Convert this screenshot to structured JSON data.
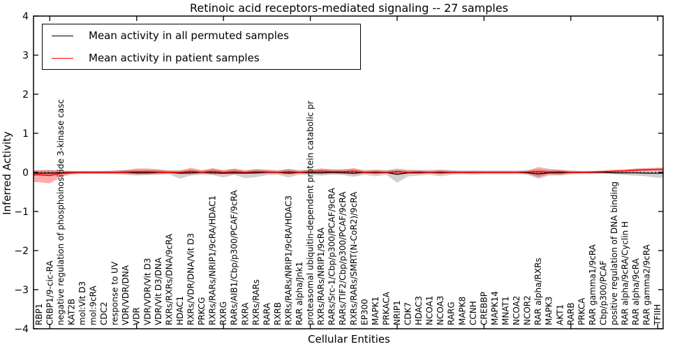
{
  "title": "Retinoic acid receptors-mediated signaling -- 27 samples",
  "axes": {
    "xlabel": "Cellular Entities",
    "ylabel": "Inferred Activity"
  },
  "legend": {
    "items": [
      {
        "label": "Mean activity in all permuted samples",
        "color": "#000000"
      },
      {
        "label": "Mean activity in patient samples",
        "color": "#ff0000"
      }
    ]
  },
  "colors": {
    "permuted_line": "#000000",
    "patient_line": "#ff0000",
    "permuted_band": "#c8c8c8",
    "patient_band": "#ff0000",
    "frame": "#000000"
  },
  "chart_data": {
    "type": "line",
    "title": "Retinoic acid receptors-mediated signaling -- 27 samples",
    "xlabel": "Cellular Entities",
    "ylabel": "Inferred Activity",
    "ylim": [
      -4,
      4
    ],
    "grid": false,
    "legend_position": "upper left",
    "zero_line_style": "dotted",
    "yticks": {
      "values": [
        4,
        3,
        2,
        1,
        0,
        -1,
        -2,
        -3,
        -4
      ],
      "labels": [
        "4",
        "3",
        "2",
        "1",
        "0",
        "−1",
        "−2",
        "−3",
        "−4"
      ]
    },
    "categories": [
      "RBP1",
      "CRBP1/9-cic-RA",
      "negative regulation of phosphoinositide 3-kinase casc",
      "KAT2B",
      "mol:Vit D3",
      "mol:9cRA",
      "CDC2",
      "response to UV",
      "VDR/VDR/DNA",
      "VDR",
      "VDR/VDR/Vit D3",
      "VDR/Vit D3/DNA",
      "RXRs/RXRs/DNA/9cRA",
      "HDAC1",
      "RXRs/VDR/DNA/Vit D3",
      "PRKCG",
      "RXRs/RARs/NRIP1/9cRA/HDAC1",
      "RXRG",
      "RARs/AIB1/Cbp/p300/PCAF/9cRA",
      "RXRA",
      "RXRs/RARs",
      "RARA",
      "RXRB",
      "RXRs/RARs/NRIP1/9cRA/HDAC3",
      "RAR alpha/Jnk1",
      "proteasomal ubiquitin-dependent protein catabolic pr",
      "RXRs/RARs/NRIP1/9cRA",
      "RARs/Src-1/Cbp/p300/PCAF/9cRA",
      "RARs/TIF2/Cbp/p300/PCAF/9cRA",
      "RXRs/RARs/SMRT(N-CoR2)/9cRA",
      "EP300",
      "MAPK1",
      "PRKACA",
      "NRIP1",
      "CDK7",
      "HDAC3",
      "NCOA1",
      "NCOA3",
      "RARG",
      "MAPK8",
      "CCNH",
      "CREBBP",
      "MAPK14",
      "MNAT1",
      "NCOA2",
      "NCOR2",
      "RAR alpha/RXRs",
      "MAPK3",
      "AKT1",
      "RARB",
      "PRKCA",
      "RAR gamma1/9cRA",
      "Cbp/p300/PCAF",
      "positive regulation of DNA binding",
      "RAR alpha/9cRA/Cyclin H",
      "RAR alpha/9cRA",
      "RAR gamma2/9cRA",
      "TFIIH"
    ],
    "series": [
      {
        "name": "Mean activity in all permuted samples",
        "role": "mean_line",
        "color": "#000000",
        "values": [
          -0.02,
          -0.02,
          -0.01,
          0,
          0,
          0,
          0,
          0,
          0,
          -0.01,
          -0.01,
          0,
          0,
          -0.02,
          -0.01,
          0,
          -0.01,
          -0.02,
          -0.01,
          -0.02,
          -0.01,
          0,
          0,
          -0.02,
          0,
          -0.01,
          -0.01,
          0,
          -0.01,
          -0.02,
          0,
          -0.01,
          0,
          -0.05,
          -0.01,
          -0.01,
          0,
          -0.01,
          0,
          0,
          0,
          0,
          0,
          0,
          0,
          -0.01,
          -0.04,
          -0.01,
          -0.01,
          0,
          0,
          0,
          0,
          -0.01,
          -0.01,
          -0.01,
          -0.02,
          -0.02
        ]
      },
      {
        "name": "Mean activity in patient samples",
        "role": "mean_line",
        "color": "#ff0000",
        "values": [
          -0.06,
          -0.08,
          -0.03,
          -0.01,
          0,
          0,
          0,
          0,
          0.01,
          0.02,
          0.02,
          0.01,
          0,
          0,
          0.03,
          0,
          0.03,
          0,
          0.02,
          0,
          0.02,
          0.01,
          0,
          0.02,
          0,
          0.02,
          0.03,
          0.02,
          0.02,
          0.03,
          0,
          0.01,
          0,
          0.02,
          0,
          0.01,
          0,
          0.01,
          0,
          0,
          0,
          0,
          0,
          0,
          0,
          0.01,
          0.02,
          0.01,
          0.02,
          0,
          0,
          0.01,
          0.02,
          0.03,
          0.04,
          0.06,
          0.07,
          0.08
        ]
      },
      {
        "name": "Permuted samples activity range",
        "role": "band",
        "color": "#c8c8c8",
        "opacity": 0.85,
        "hi": [
          0.06,
          0.06,
          0.05,
          0.04,
          0.04,
          0.04,
          0.04,
          0.05,
          0.06,
          0.07,
          0.07,
          0.06,
          0.05,
          0.06,
          0.07,
          0.06,
          0.08,
          0.06,
          0.08,
          0.06,
          0.08,
          0.07,
          0.06,
          0.08,
          0.06,
          0.08,
          0.08,
          0.07,
          0.09,
          0.08,
          0.06,
          0.07,
          0.06,
          0.1,
          0.07,
          0.06,
          0.06,
          0.07,
          0.06,
          0.05,
          0.05,
          0.05,
          0.05,
          0.05,
          0.05,
          0.06,
          0.08,
          0.06,
          0.06,
          0.05,
          0.04,
          0.04,
          0.04,
          0.04,
          0.04,
          0.05,
          0.05,
          0.06
        ],
        "lo": [
          -0.08,
          -0.07,
          -0.05,
          -0.04,
          -0.04,
          -0.04,
          -0.04,
          -0.05,
          -0.06,
          -0.08,
          -0.07,
          -0.06,
          -0.05,
          -0.16,
          -0.08,
          -0.06,
          -0.07,
          -0.13,
          -0.06,
          -0.15,
          -0.12,
          -0.07,
          -0.06,
          -0.13,
          -0.06,
          -0.07,
          -0.08,
          -0.06,
          -0.07,
          -0.11,
          -0.06,
          -0.1,
          -0.06,
          -0.26,
          -0.1,
          -0.08,
          -0.06,
          -0.1,
          -0.06,
          -0.05,
          -0.06,
          -0.05,
          -0.05,
          -0.05,
          -0.05,
          -0.06,
          -0.16,
          -0.08,
          -0.08,
          -0.05,
          -0.04,
          -0.04,
          -0.04,
          -0.05,
          -0.07,
          -0.08,
          -0.1,
          -0.14
        ]
      },
      {
        "name": "Patient samples activity range",
        "role": "band",
        "color": "#ff0000",
        "opacity": 0.33,
        "hi": [
          0.05,
          0.06,
          0.04,
          0.03,
          0.03,
          0.03,
          0.03,
          0.04,
          0.06,
          0.1,
          0.1,
          0.08,
          0.05,
          0.04,
          0.12,
          0.05,
          0.11,
          0.05,
          0.1,
          0.04,
          0.08,
          0.06,
          0.04,
          0.09,
          0.04,
          0.06,
          0.1,
          0.08,
          0.06,
          0.11,
          0.04,
          0.06,
          0.04,
          0.07,
          0.05,
          0.05,
          0.04,
          0.06,
          0.04,
          0.03,
          0.04,
          0.03,
          0.03,
          0.03,
          0.03,
          0.04,
          0.14,
          0.09,
          0.07,
          0.04,
          0.03,
          0.03,
          0.05,
          0.07,
          0.08,
          0.1,
          0.11,
          0.12
        ],
        "lo": [
          -0.25,
          -0.28,
          -0.12,
          -0.05,
          -0.03,
          -0.03,
          -0.03,
          -0.03,
          -0.04,
          -0.05,
          -0.05,
          -0.04,
          -0.03,
          -0.04,
          -0.05,
          -0.03,
          -0.05,
          -0.04,
          -0.05,
          -0.03,
          -0.04,
          -0.03,
          -0.03,
          -0.05,
          -0.03,
          -0.03,
          -0.04,
          -0.03,
          -0.03,
          -0.05,
          -0.03,
          -0.04,
          -0.03,
          -0.05,
          -0.03,
          -0.03,
          -0.03,
          -0.04,
          -0.03,
          -0.02,
          -0.03,
          -0.02,
          -0.02,
          -0.02,
          -0.02,
          -0.03,
          -0.12,
          -0.05,
          -0.06,
          -0.03,
          -0.02,
          -0.02,
          -0.01,
          0.0,
          0.01,
          0.02,
          0.03,
          0.04
        ]
      }
    ]
  }
}
